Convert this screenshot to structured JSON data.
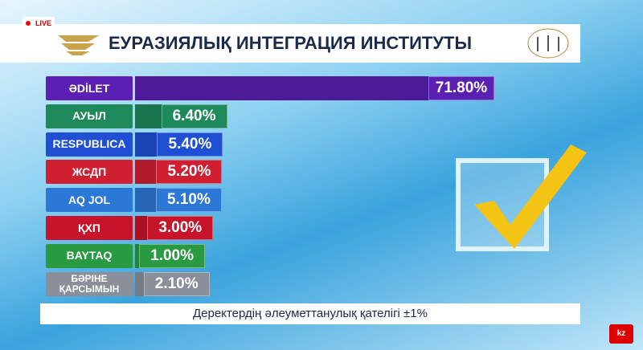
{
  "badge": "LIVE",
  "channel": "kz",
  "chart_data": {
    "type": "bar",
    "orientation": "horizontal",
    "title": "ЕУРАЗИЯЛЫҚ ИНТЕГРАЦИЯ ИНСТИТУТЫ",
    "categories": [
      "ӘDİLET",
      "АУЫЛ",
      "RESPUBLICA",
      "ЖСДП",
      "AQ JOL",
      "ҚХП",
      "BAYTAQ",
      "БӘРІНЕ ҚАРСЫМЫН"
    ],
    "values": [
      71.8,
      6.4,
      5.4,
      5.2,
      5.1,
      3.0,
      1.0,
      2.1
    ],
    "value_labels": [
      "71.80%",
      "6.40%",
      "5.40%",
      "5.20%",
      "5.10%",
      "3.00%",
      "1.00%",
      "2.10%"
    ],
    "colors": [
      "#5b1fb3",
      "#1e8a5c",
      "#1f4fd2",
      "#d01f30",
      "#2b78d6",
      "#c8142b",
      "#2a9a42",
      "#8a8f9a"
    ],
    "footnote": "Деректердің әлеуметтанулық қателігі ±1%"
  }
}
